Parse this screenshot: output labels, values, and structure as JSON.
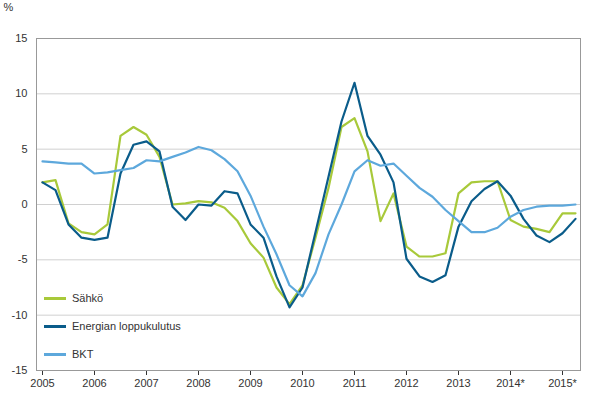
{
  "chart_data": {
    "type": "line",
    "y_label": "%",
    "categories": [
      "2005",
      null,
      null,
      null,
      "2006",
      null,
      null,
      null,
      "2007",
      null,
      null,
      null,
      "2008",
      null,
      null,
      null,
      "2009",
      null,
      null,
      null,
      "2010",
      null,
      null,
      null,
      "2011",
      null,
      null,
      null,
      "2012",
      null,
      null,
      null,
      "2013",
      null,
      null,
      null,
      "2014*",
      null,
      null,
      null,
      "2015*",
      null
    ],
    "series": [
      {
        "name": "Sähkö",
        "color": "#a8c93a",
        "values": [
          2.0,
          2.2,
          -1.7,
          -2.5,
          -2.7,
          -1.8,
          6.2,
          7.0,
          6.3,
          4.3,
          0.0,
          0.1,
          0.3,
          0.2,
          -0.3,
          -1.5,
          -3.5,
          -4.8,
          -7.5,
          -9.0,
          -7.3,
          -3.0,
          1.5,
          7.0,
          7.8,
          4.8,
          -1.5,
          1.0,
          -3.8,
          -4.7,
          -4.7,
          -4.4,
          1.0,
          2.0,
          2.1,
          2.1,
          -1.4,
          -2.0,
          -2.2,
          -2.5,
          -0.8,
          -0.8
        ]
      },
      {
        "name": "Energian loppukulutus",
        "color": "#0a5c8a",
        "values": [
          2.0,
          1.3,
          -1.8,
          -3.0,
          -3.2,
          -3.0,
          2.8,
          5.4,
          5.7,
          4.8,
          -0.2,
          -1.4,
          0.0,
          -0.1,
          1.2,
          1.0,
          -1.8,
          -3.0,
          -6.5,
          -9.3,
          -7.5,
          -2.5,
          2.5,
          7.5,
          11.0,
          6.2,
          4.5,
          2.0,
          -4.9,
          -6.5,
          -7.0,
          -6.4,
          -2.0,
          0.3,
          1.4,
          2.1,
          0.8,
          -1.3,
          -2.8,
          -3.4,
          -2.6,
          -1.3
        ]
      },
      {
        "name": "BKT",
        "color": "#5da8dc",
        "values": [
          3.9,
          3.8,
          3.7,
          3.7,
          2.8,
          2.9,
          3.1,
          3.3,
          4.0,
          3.9,
          4.3,
          4.7,
          5.2,
          4.9,
          4.1,
          3.0,
          0.8,
          -2.0,
          -4.5,
          -7.3,
          -8.3,
          -6.2,
          -2.7,
          0.0,
          3.0,
          4.0,
          3.5,
          3.7,
          2.6,
          1.5,
          0.7,
          -0.5,
          -1.5,
          -2.5,
          -2.5,
          -2.1,
          -1.1,
          -0.5,
          -0.2,
          -0.1,
          -0.1,
          0.0
        ]
      }
    ],
    "ylim": [
      -15,
      15
    ],
    "yticks": [
      -15,
      -10,
      -5,
      0,
      5,
      10,
      15
    ],
    "grid": true,
    "legend": "bottom-left"
  }
}
